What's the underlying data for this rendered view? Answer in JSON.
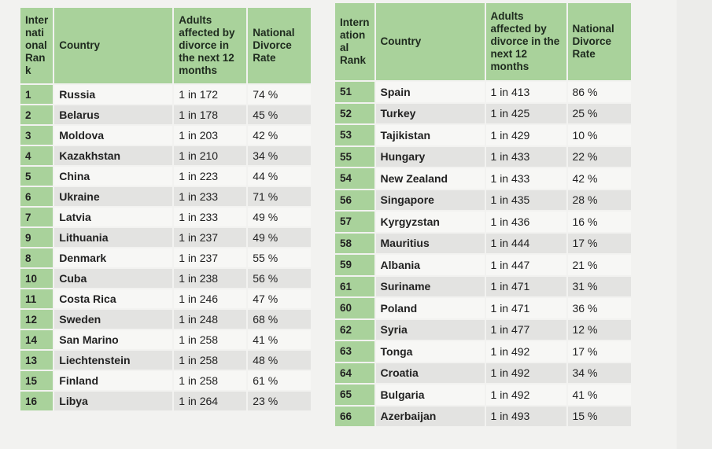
{
  "left": {
    "headers": {
      "rank": "Inter nati onal Ran k",
      "country": "Country",
      "adults": "Adults affected by divorce in the next 12 months",
      "rate": "National Divorce Rate"
    },
    "rows": [
      {
        "rank": "1",
        "country": "Russia",
        "adults": "1 in 172",
        "rate": "74 %"
      },
      {
        "rank": "2",
        "country": "Belarus",
        "adults": "1 in 178",
        "rate": "45 %"
      },
      {
        "rank": "3",
        "country": "Moldova",
        "adults": "1 in 203",
        "rate": "42 %"
      },
      {
        "rank": "4",
        "country": "Kazakhstan",
        "adults": "1 in 210",
        "rate": "34 %"
      },
      {
        "rank": "5",
        "country": "China",
        "adults": "1 in 223",
        "rate": "44 %"
      },
      {
        "rank": "6",
        "country": "Ukraine",
        "adults": "1 in 233",
        "rate": "71 %"
      },
      {
        "rank": "7",
        "country": "Latvia",
        "adults": "1 in 233",
        "rate": "49 %"
      },
      {
        "rank": "9",
        "country": "Lithuania",
        "adults": "1 in 237",
        "rate": "49 %"
      },
      {
        "rank": "8",
        "country": "Denmark",
        "adults": "1 in 237",
        "rate": "55 %"
      },
      {
        "rank": "10",
        "country": "Cuba",
        "adults": "1 in 238",
        "rate": "56 %"
      },
      {
        "rank": "11",
        "country": "Costa Rica",
        "adults": "1 in 246",
        "rate": "47 %"
      },
      {
        "rank": "12",
        "country": "Sweden",
        "adults": "1 in 248",
        "rate": "68 %"
      },
      {
        "rank": "14",
        "country": "San Marino",
        "adults": "1 in 258",
        "rate": "41 %"
      },
      {
        "rank": "13",
        "country": "Liechtenstein",
        "adults": "1 in 258",
        "rate": "48 %"
      },
      {
        "rank": "15",
        "country": "Finland",
        "adults": "1 in 258",
        "rate": "61 %"
      },
      {
        "rank": "16",
        "country": "Libya",
        "adults": "1 in 264",
        "rate": "23 %"
      }
    ]
  },
  "right": {
    "headers": {
      "rank": "Intern ation al Rank",
      "country": "Country",
      "adults": "Adults affected by divorce in the next 12 months",
      "rate": "National Divorce Rate"
    },
    "rows": [
      {
        "rank": "51",
        "country": "Spain",
        "adults": "1 in 413",
        "rate": "86 %"
      },
      {
        "rank": "52",
        "country": "Turkey",
        "adults": "1 in 425",
        "rate": "25 %"
      },
      {
        "rank": "53",
        "country": "Tajikistan",
        "adults": "1 in 429",
        "rate": "10 %"
      },
      {
        "rank": "55",
        "country": "Hungary",
        "adults": "1 in 433",
        "rate": "22 %"
      },
      {
        "rank": "54",
        "country": "New Zealand",
        "adults": "1 in 433",
        "rate": "42 %"
      },
      {
        "rank": "56",
        "country": "Singapore",
        "adults": "1 in 435",
        "rate": "28 %"
      },
      {
        "rank": "57",
        "country": "Kyrgyzstan",
        "adults": "1 in 436",
        "rate": "16 %"
      },
      {
        "rank": "58",
        "country": "Mauritius",
        "adults": "1 in 444",
        "rate": "17 %"
      },
      {
        "rank": "59",
        "country": "Albania",
        "adults": "1 in 447",
        "rate": "21 %"
      },
      {
        "rank": "61",
        "country": "Suriname",
        "adults": "1 in 471",
        "rate": "31 %"
      },
      {
        "rank": "60",
        "country": "Poland",
        "adults": "1 in 471",
        "rate": "36 %"
      },
      {
        "rank": "62",
        "country": "Syria",
        "adults": "1 in 477",
        "rate": "12 %"
      },
      {
        "rank": "63",
        "country": "Tonga",
        "adults": "1 in 492",
        "rate": "17 %"
      },
      {
        "rank": "64",
        "country": "Croatia",
        "adults": "1 in 492",
        "rate": "34 %"
      },
      {
        "rank": "65",
        "country": "Bulgaria",
        "adults": "1 in 492",
        "rate": "41 %"
      },
      {
        "rank": "66",
        "country": "Azerbaijan",
        "adults": "1 in 493",
        "rate": "15 %"
      }
    ]
  },
  "colors": {
    "header_green": "#a9d29b",
    "row_alt": "#e3e3e1",
    "row_plain": "#f7f7f5"
  }
}
